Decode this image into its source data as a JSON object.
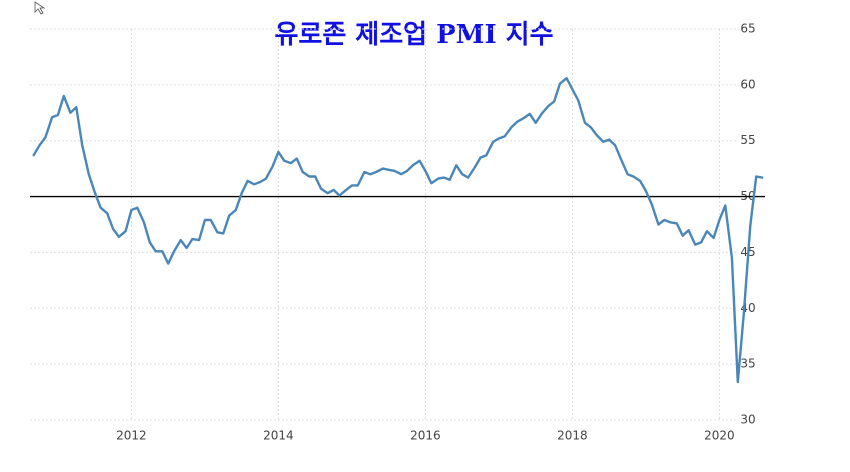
{
  "chart_data": {
    "type": "line",
    "title": "유로존 제조업 PMI 지수",
    "x": [
      2010.67,
      2010.75,
      2010.83,
      2010.92,
      2011.0,
      2011.08,
      2011.17,
      2011.25,
      2011.33,
      2011.42,
      2011.5,
      2011.58,
      2011.67,
      2011.75,
      2011.83,
      2011.92,
      2012.0,
      2012.08,
      2012.17,
      2012.25,
      2012.33,
      2012.42,
      2012.5,
      2012.58,
      2012.67,
      2012.75,
      2012.83,
      2012.92,
      2013.0,
      2013.08,
      2013.17,
      2013.25,
      2013.33,
      2013.42,
      2013.5,
      2013.58,
      2013.67,
      2013.75,
      2013.83,
      2013.92,
      2014.0,
      2014.08,
      2014.17,
      2014.25,
      2014.33,
      2014.42,
      2014.5,
      2014.58,
      2014.67,
      2014.75,
      2014.83,
      2014.92,
      2015.0,
      2015.08,
      2015.17,
      2015.25,
      2015.33,
      2015.42,
      2015.5,
      2015.58,
      2015.67,
      2015.75,
      2015.83,
      2015.92,
      2016.0,
      2016.08,
      2016.17,
      2016.25,
      2016.33,
      2016.42,
      2016.5,
      2016.58,
      2016.67,
      2016.75,
      2016.83,
      2016.92,
      2017.0,
      2017.08,
      2017.17,
      2017.25,
      2017.33,
      2017.42,
      2017.5,
      2017.58,
      2017.67,
      2017.75,
      2017.83,
      2017.92,
      2018.0,
      2018.08,
      2018.17,
      2018.25,
      2018.33,
      2018.42,
      2018.5,
      2018.58,
      2018.67,
      2018.75,
      2018.83,
      2018.92,
      2019.0,
      2019.08,
      2019.17,
      2019.25,
      2019.33,
      2019.42,
      2019.5,
      2019.58,
      2019.67,
      2019.75,
      2019.83,
      2019.92,
      2020.0,
      2020.08,
      2020.17,
      2020.25,
      2020.33,
      2020.42,
      2020.5,
      2020.58
    ],
    "series": [
      {
        "color": "#4a87b8",
        "values": [
          53.7,
          54.6,
          55.3,
          57.1,
          57.3,
          59.0,
          57.5,
          58.0,
          54.6,
          52.0,
          50.4,
          49.0,
          48.5,
          47.1,
          46.4,
          46.9,
          48.8,
          49.0,
          47.7,
          45.9,
          45.1,
          45.1,
          44.0,
          45.1,
          46.1,
          45.4,
          46.2,
          46.1,
          47.9,
          47.9,
          46.8,
          46.7,
          48.3,
          48.8,
          50.3,
          51.4,
          51.1,
          51.3,
          51.6,
          52.7,
          54.0,
          53.2,
          53.0,
          53.4,
          52.2,
          51.8,
          51.8,
          50.7,
          50.3,
          50.6,
          50.1,
          50.6,
          51.0,
          51.0,
          52.2,
          52.0,
          52.2,
          52.5,
          52.4,
          52.3,
          52.0,
          52.3,
          52.8,
          53.2,
          52.3,
          51.2,
          51.6,
          51.7,
          51.5,
          52.8,
          52.0,
          51.7,
          52.6,
          53.5,
          53.7,
          54.9,
          55.2,
          55.4,
          56.2,
          56.7,
          57.0,
          57.4,
          56.6,
          57.4,
          58.1,
          58.5,
          60.1,
          60.6,
          59.6,
          58.6,
          56.6,
          56.2,
          55.5,
          54.9,
          55.1,
          54.6,
          53.2,
          52.0,
          51.8,
          51.4,
          50.5,
          49.3,
          47.5,
          47.9,
          47.7,
          47.6,
          46.5,
          47.0,
          45.7,
          45.9,
          46.9,
          46.3,
          47.9,
          49.2,
          44.5,
          33.4,
          39.4,
          47.4,
          51.8,
          51.7
        ]
      }
    ],
    "xlim": [
      2010.62,
      2020.62
    ],
    "xticks": [
      2012,
      2014,
      2016,
      2018,
      2020
    ],
    "ylim": [
      30,
      65
    ],
    "yticks": [
      30,
      35,
      40,
      45,
      50,
      55,
      60,
      65
    ],
    "reference_line": 50,
    "grid": true
  }
}
